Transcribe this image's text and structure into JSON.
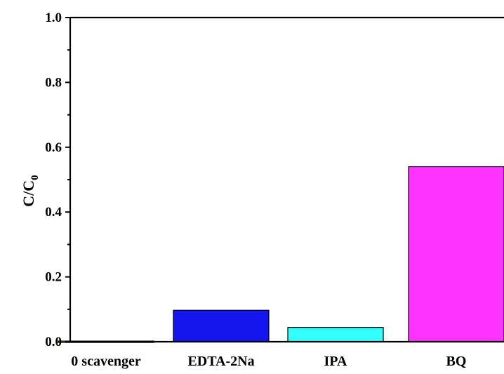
{
  "chart_data": {
    "type": "bar",
    "categories": [
      "0 scavenger",
      "EDTA-2Na",
      "IPA",
      "BQ"
    ],
    "values": [
      0.002,
      0.097,
      0.044,
      0.54
    ],
    "colors": [
      "#33cc33",
      "#1515ee",
      "#33ffff",
      "#ff33ff"
    ],
    "ylabel_main": "C/C",
    "ylabel_sub": "0",
    "ylim": [
      0.0,
      1.0
    ],
    "yticks": [
      0.0,
      0.2,
      0.4,
      0.6,
      0.8,
      1.0
    ],
    "yticks_labels": [
      "0.0",
      "0.2",
      "0.4",
      "0.6",
      "0.8",
      "1.0"
    ],
    "grid": false,
    "legend": "none"
  }
}
